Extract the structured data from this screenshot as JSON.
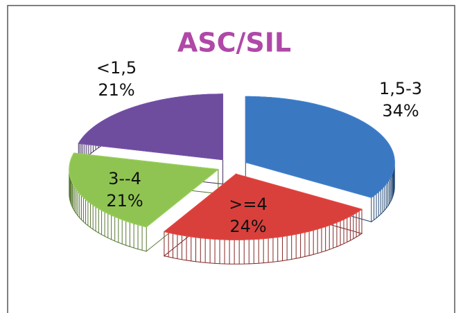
{
  "chart_data": {
    "type": "pie",
    "title": "ASC/SIL",
    "title_color": "#b048a8",
    "categories": [
      "1,5-3",
      ">=4",
      "3--4",
      "<1,5"
    ],
    "values": [
      34,
      24,
      21,
      21
    ],
    "value_labels": [
      "34%",
      "24%",
      "21%",
      "21%"
    ],
    "colors": [
      "#3b78c2",
      "#d9403c",
      "#8fc452",
      "#6e4c9e"
    ]
  }
}
